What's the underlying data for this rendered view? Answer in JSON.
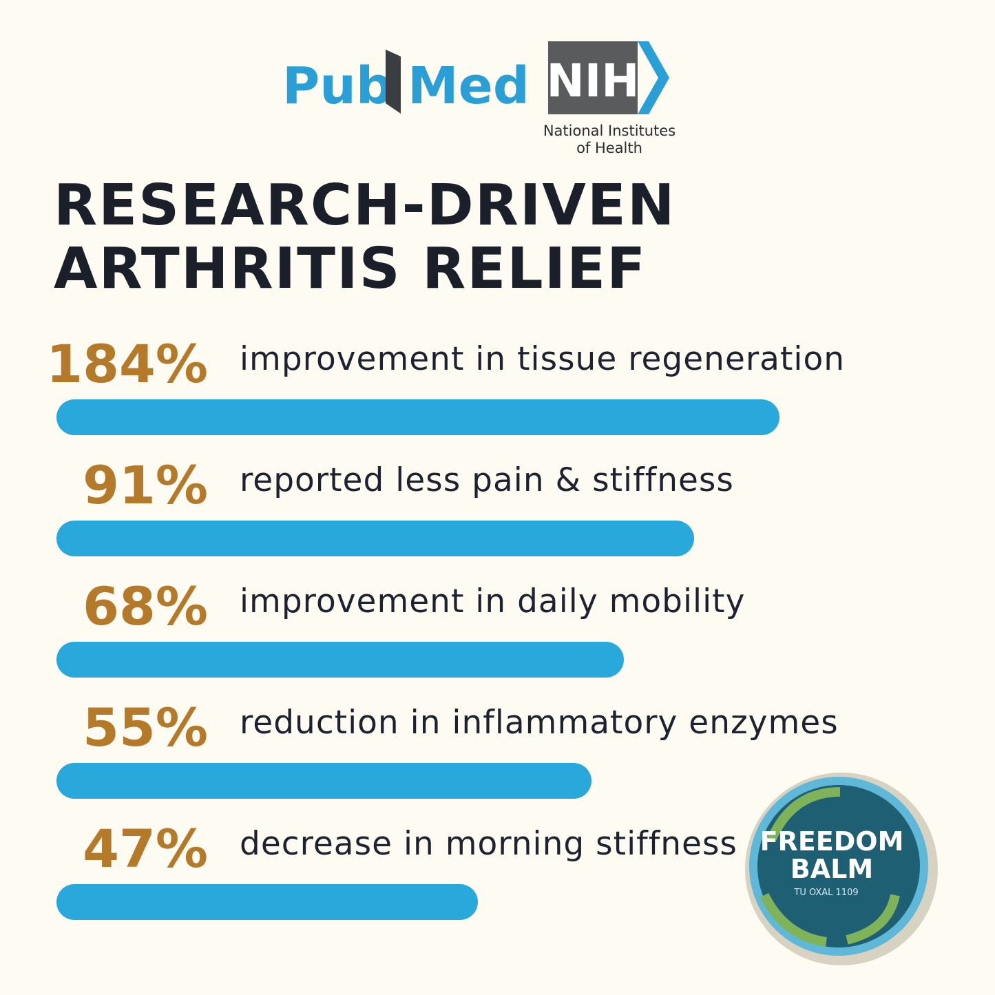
{
  "logos": {
    "pubmed": {
      "left": "Pub",
      "right": "Med"
    },
    "nih": {
      "mark": "NIH",
      "line1": "National Institutes",
      "line2": "of Health"
    }
  },
  "title": {
    "line1": "RESEARCH-DRIVEN",
    "line2": "ARTHRITIS RELIEF"
  },
  "stats": [
    {
      "figure": "184%",
      "text": "improvement in tissue regeneration"
    },
    {
      "figure": "91%",
      "text": "reported less pain & stiffness"
    },
    {
      "figure": "68%",
      "text": "improvement in daily mobility"
    },
    {
      "figure": "55%",
      "text": "reduction in inflammatory enzymes"
    },
    {
      "figure": "47%",
      "text": "decrease in morning stiffness"
    }
  ],
  "product": {
    "line1": "FREEDOM",
    "line2": "BALM",
    "small": "TU OXAL 1109"
  }
}
